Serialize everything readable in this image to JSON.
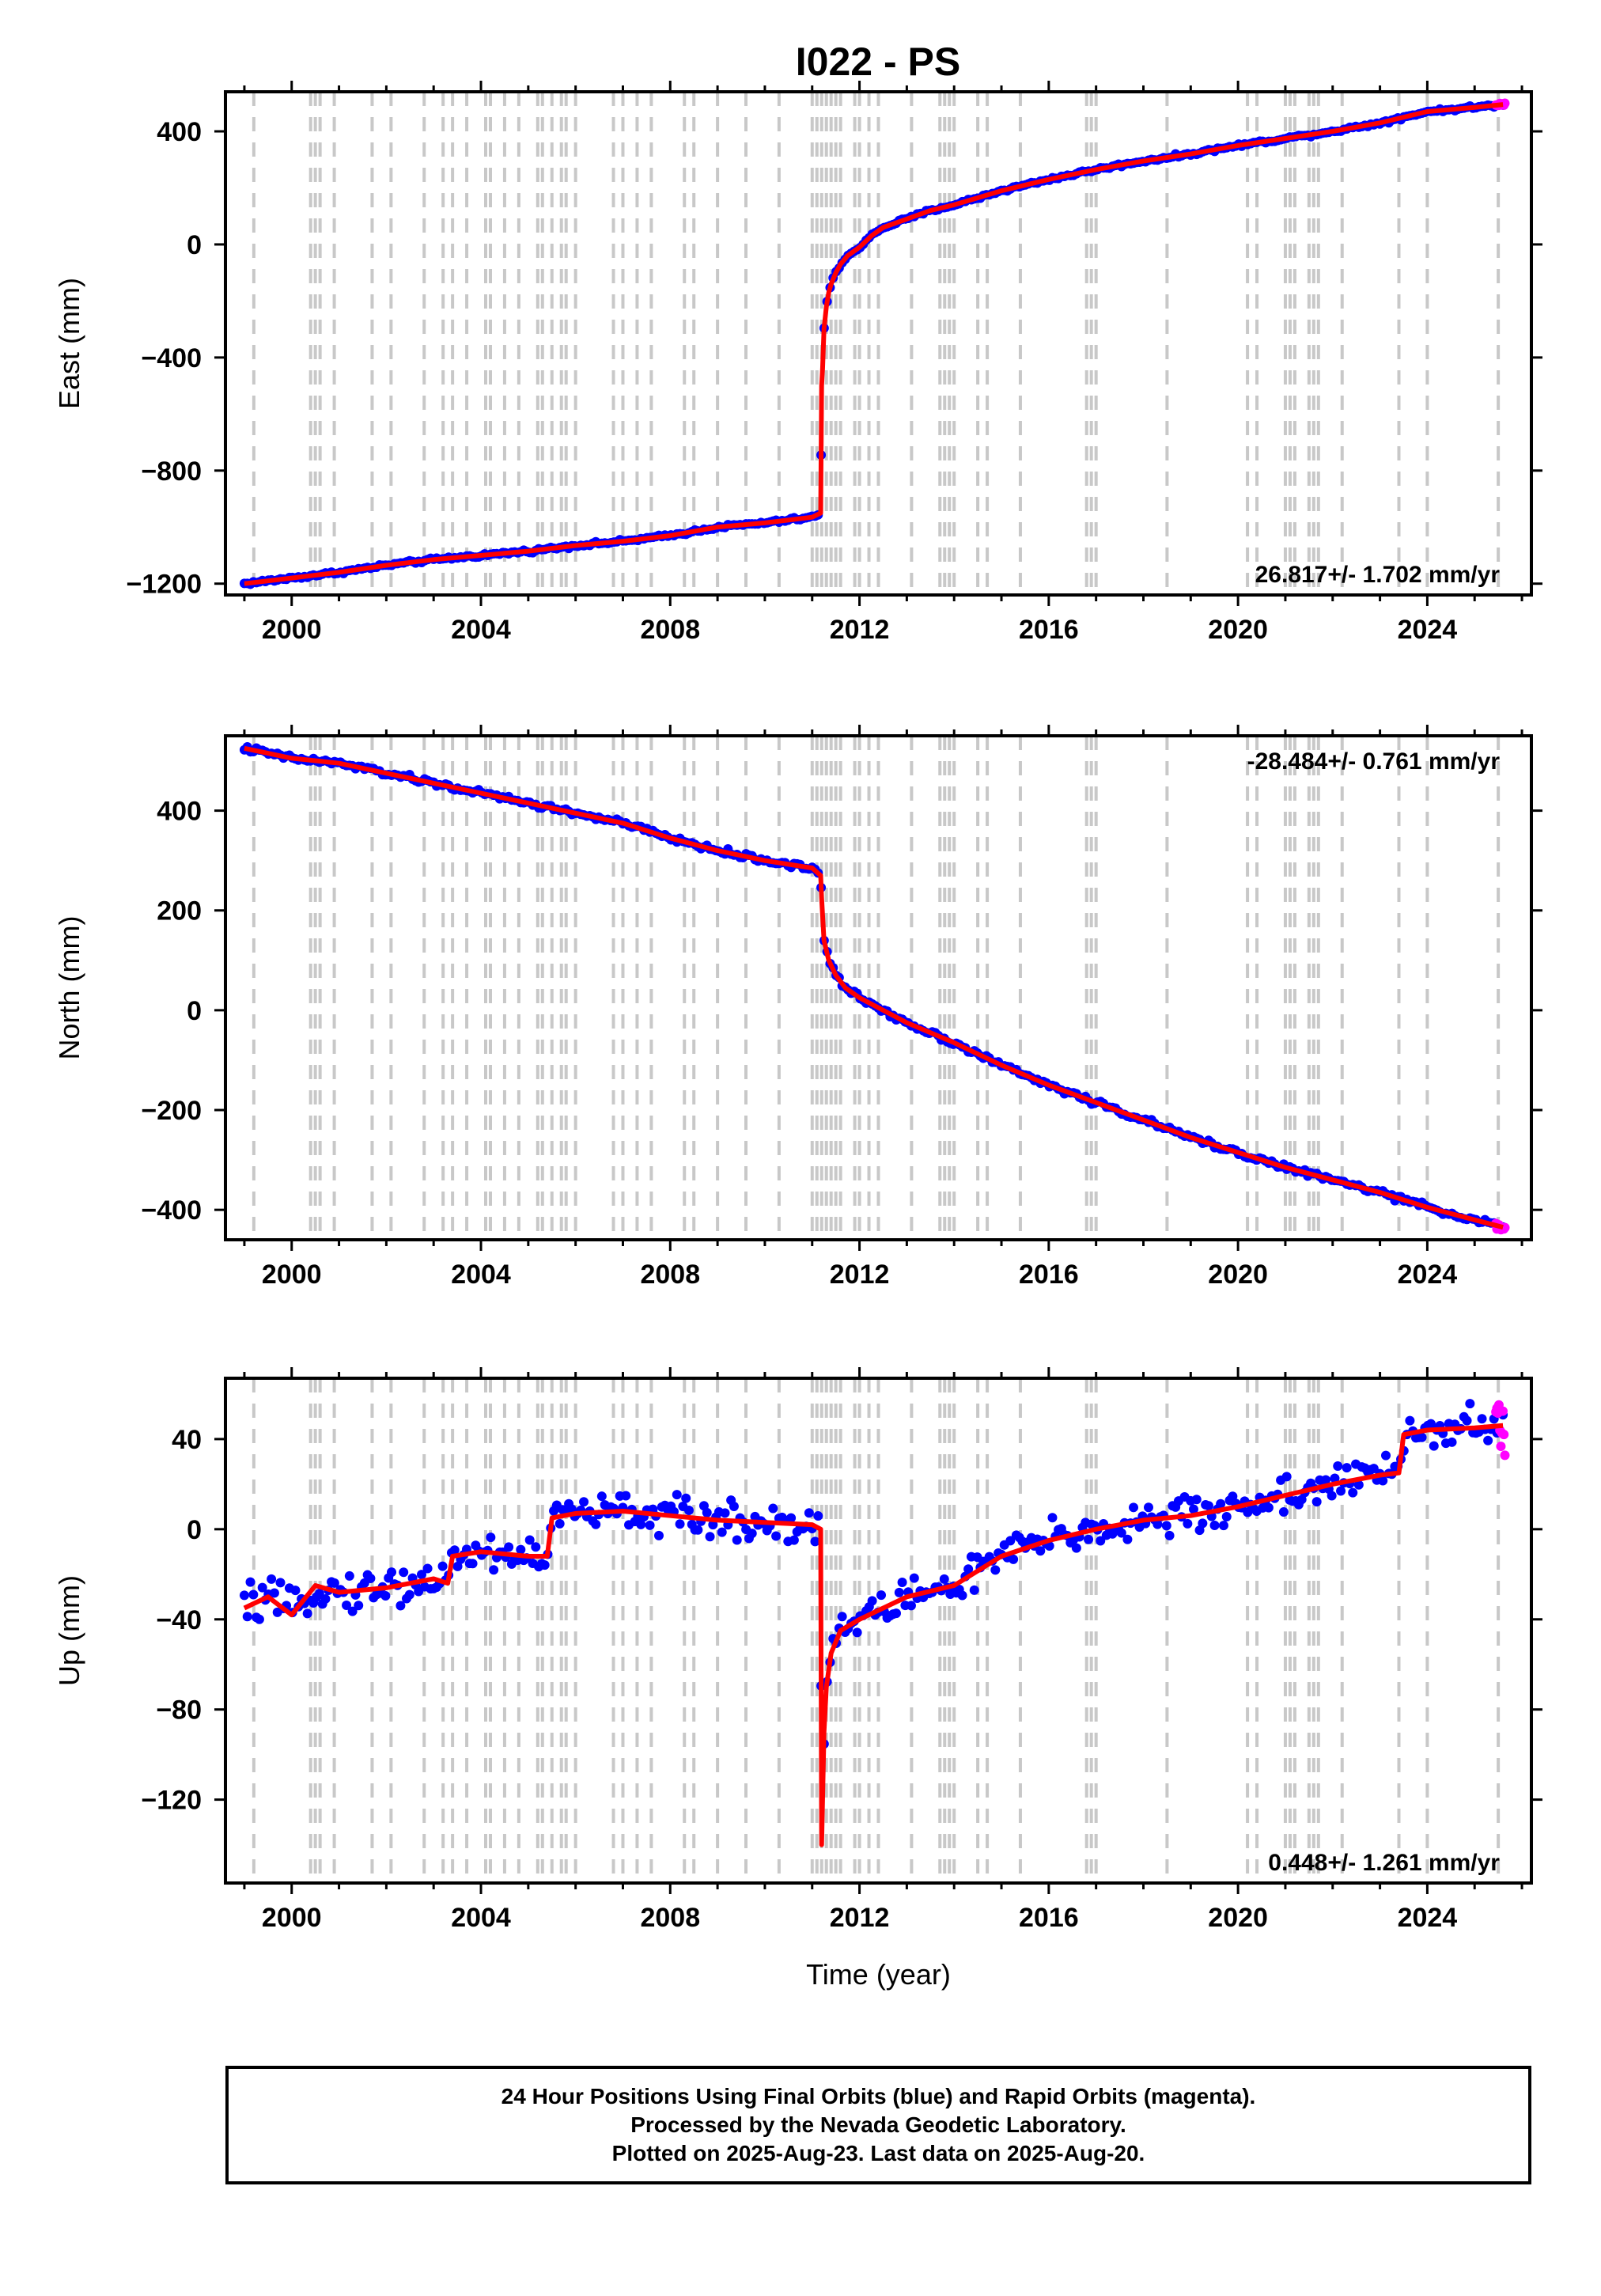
{
  "title": "I022 - PS",
  "colors": {
    "final_orbits": "#0000ff",
    "rapid_orbits": "#ff00ff",
    "model": "#ff0000",
    "event_lines": "#c8c8c8",
    "frame": "#000000"
  },
  "caption": {
    "line1": "24 Hour Positions Using Final Orbits (blue) and Rapid Orbits (magenta).",
    "line2": "Processed by the Nevada Geodetic Laboratory.",
    "line3": "Plotted on 2025-Aug-23. Last data on 2025-Aug-20."
  },
  "chart_data": [
    {
      "type": "scatter",
      "title": "I022 - PS",
      "ylabel": "East (mm)",
      "xlabel": "",
      "xlim": [
        1998.6,
        2026.2
      ],
      "ylim": [
        -1240,
        540
      ],
      "xticks": [
        2000,
        2004,
        2008,
        2012,
        2016,
        2020,
        2024
      ],
      "yticks": [
        -1200,
        -800,
        -400,
        0,
        400
      ],
      "grid": false,
      "rate_label": "26.817+/- 1.702 mm/yr",
      "rate_position": "bottom-right",
      "event_lines": [
        1999.2,
        2000.4,
        2000.5,
        2000.6,
        2000.9,
        2001.7,
        2002.1,
        2002.8,
        2003.2,
        2003.4,
        2003.7,
        2004.1,
        2004.2,
        2004.5,
        2004.8,
        2005.2,
        2005.3,
        2005.5,
        2005.7,
        2005.8,
        2006.0,
        2006.8,
        2007.0,
        2007.3,
        2007.6,
        2008.3,
        2008.5,
        2009.0,
        2009.6,
        2010.3,
        2011.0,
        2011.1,
        2011.2,
        2011.3,
        2011.4,
        2011.5,
        2011.6,
        2011.9,
        2012.0,
        2012.2,
        2012.4,
        2013.1,
        2013.7,
        2013.8,
        2013.9,
        2014.0,
        2014.5,
        2014.7,
        2015.4,
        2016.8,
        2016.9,
        2017.0,
        2018.5,
        2020.2,
        2020.4,
        2021.0,
        2021.1,
        2021.2,
        2021.5,
        2021.6,
        2021.7,
        2022.2,
        2023.4,
        2024.0,
        2025.5
      ],
      "series": [
        {
          "name": "Final Orbits",
          "x": [
            1999.0,
            2000.0,
            2001.0,
            2002.0,
            2003.0,
            2004.0,
            2005.0,
            2006.0,
            2007.0,
            2008.0,
            2009.0,
            2010.0,
            2011.0,
            2011.18,
            2011.2,
            2011.22,
            2011.25,
            2011.3,
            2011.35,
            2011.4,
            2011.5,
            2011.6,
            2011.75,
            2012.0,
            2012.25,
            2012.5,
            2013.0,
            2013.5,
            2014.0,
            2015.0,
            2016.0,
            2017.0,
            2018.0,
            2019.0,
            2020.0,
            2021.0,
            2022.0,
            2023.0,
            2024.0,
            2025.0,
            2025.6
          ],
          "values": [
            -1200,
            -1180,
            -1160,
            -1135,
            -1115,
            -1100,
            -1085,
            -1065,
            -1050,
            -1030,
            -1000,
            -985,
            -965,
            -950,
            -500,
            -440,
            -300,
            -220,
            -170,
            -140,
            -100,
            -70,
            -40,
            -10,
            30,
            60,
            90,
            120,
            140,
            190,
            230,
            265,
            295,
            320,
            350,
            375,
            400,
            430,
            470,
            485,
            495
          ]
        },
        {
          "name": "Rapid Orbits",
          "x": [
            2025.45,
            2025.55,
            2025.64
          ],
          "values": [
            492,
            496,
            497
          ]
        }
      ]
    },
    {
      "type": "scatter",
      "ylabel": "North (mm)",
      "xlabel": "",
      "xlim": [
        1998.6,
        2026.2
      ],
      "ylim": [
        -460,
        550
      ],
      "xticks": [
        2000,
        2004,
        2008,
        2012,
        2016,
        2020,
        2024
      ],
      "yticks": [
        -400,
        -200,
        0,
        200,
        400
      ],
      "grid": false,
      "rate_label": "-28.484+/- 0.761 mm/yr",
      "rate_position": "top-right",
      "event_lines": [
        1999.2,
        2000.4,
        2000.5,
        2000.6,
        2000.9,
        2001.7,
        2002.1,
        2002.8,
        2003.2,
        2003.4,
        2003.7,
        2004.1,
        2004.2,
        2004.5,
        2004.8,
        2005.2,
        2005.3,
        2005.5,
        2005.7,
        2005.8,
        2006.0,
        2006.8,
        2007.0,
        2007.3,
        2007.6,
        2008.3,
        2008.5,
        2009.0,
        2009.6,
        2010.3,
        2011.0,
        2011.1,
        2011.2,
        2011.3,
        2011.4,
        2011.5,
        2011.6,
        2011.9,
        2012.0,
        2012.2,
        2012.4,
        2013.1,
        2013.7,
        2013.8,
        2013.9,
        2014.0,
        2014.5,
        2014.7,
        2015.4,
        2016.8,
        2016.9,
        2017.0,
        2018.5,
        2020.2,
        2020.4,
        2021.0,
        2021.1,
        2021.2,
        2021.5,
        2021.6,
        2021.7,
        2022.2,
        2023.4,
        2024.0,
        2025.5
      ],
      "series": [
        {
          "name": "Final Orbits",
          "x": [
            1999.0,
            1999.5,
            2000.0,
            2000.5,
            2001.0,
            2002.0,
            2003.0,
            2004.0,
            2005.0,
            2006.0,
            2007.0,
            2008.0,
            2009.0,
            2010.0,
            2011.0,
            2011.18,
            2011.2,
            2011.25,
            2011.35,
            2011.5,
            2011.7,
            2012.0,
            2012.5,
            2013.0,
            2014.0,
            2015.0,
            2016.0,
            2017.0,
            2018.0,
            2019.0,
            2020.0,
            2021.0,
            2022.0,
            2023.0,
            2024.0,
            2025.0,
            2025.6
          ],
          "values": [
            525,
            515,
            505,
            500,
            495,
            475,
            455,
            435,
            415,
            395,
            375,
            345,
            320,
            300,
            285,
            270,
            225,
            140,
            100,
            70,
            45,
            25,
            0,
            -25,
            -65,
            -110,
            -150,
            -185,
            -220,
            -255,
            -285,
            -315,
            -340,
            -365,
            -395,
            -420,
            -435
          ]
        },
        {
          "name": "Rapid Orbits",
          "x": [
            2025.45,
            2025.55,
            2025.64
          ],
          "values": [
            -430,
            -435,
            -437
          ]
        }
      ]
    },
    {
      "type": "scatter",
      "ylabel": "Up (mm)",
      "xlabel": "Time (year)",
      "xlim": [
        1998.6,
        2026.2
      ],
      "ylim": [
        -157,
        67
      ],
      "xticks": [
        2000,
        2004,
        2008,
        2012,
        2016,
        2020,
        2024
      ],
      "yticks": [
        -120,
        -80,
        -40,
        0,
        40
      ],
      "grid": false,
      "rate_label": "0.448+/- 1.261 mm/yr",
      "rate_position": "bottom-right",
      "event_lines": [
        1999.2,
        2000.4,
        2000.5,
        2000.6,
        2000.9,
        2001.7,
        2002.1,
        2002.8,
        2003.2,
        2003.4,
        2003.7,
        2004.1,
        2004.2,
        2004.5,
        2004.8,
        2005.2,
        2005.3,
        2005.5,
        2005.7,
        2005.8,
        2006.0,
        2006.8,
        2007.0,
        2007.3,
        2007.6,
        2008.3,
        2008.5,
        2009.0,
        2009.6,
        2010.3,
        2011.0,
        2011.1,
        2011.2,
        2011.3,
        2011.4,
        2011.5,
        2011.6,
        2011.9,
        2012.0,
        2012.2,
        2012.4,
        2013.1,
        2013.7,
        2013.8,
        2013.9,
        2014.0,
        2014.5,
        2014.7,
        2015.4,
        2016.8,
        2016.9,
        2017.0,
        2018.5,
        2020.2,
        2020.4,
        2021.0,
        2021.1,
        2021.2,
        2021.5,
        2021.6,
        2021.7,
        2022.2,
        2023.4,
        2024.0,
        2025.5
      ],
      "series": [
        {
          "name": "Final Orbits",
          "x": [
            1999.0,
            1999.5,
            2000.0,
            2000.5,
            2001.0,
            2002.0,
            2003.0,
            2003.3,
            2003.4,
            2004.0,
            2005.0,
            2005.4,
            2005.5,
            2006.0,
            2007.0,
            2008.0,
            2009.0,
            2010.0,
            2011.0,
            2011.18,
            2011.2,
            2011.25,
            2011.3,
            2011.4,
            2011.6,
            2012.0,
            2013.0,
            2014.0,
            2015.0,
            2016.0,
            2017.0,
            2018.0,
            2019.0,
            2020.0,
            2021.0,
            2022.0,
            2023.0,
            2023.4,
            2023.5,
            2024.0,
            2025.0,
            2025.6
          ],
          "values": [
            -35,
            -30,
            -38,
            -25,
            -28,
            -26,
            -22,
            -24,
            -12,
            -10,
            -12,
            -12,
            5,
            7,
            8,
            6,
            4,
            3,
            2,
            0,
            -140,
            -90,
            -70,
            -55,
            -45,
            -40,
            -30,
            -25,
            -12,
            -5,
            0,
            4,
            6,
            10,
            15,
            20,
            24,
            25,
            42,
            44,
            45,
            46
          ]
        },
        {
          "name": "Rapid Orbits",
          "x": [
            2025.45,
            2025.5,
            2025.55,
            2025.6,
            2025.64
          ],
          "values": [
            46,
            55,
            38,
            50,
            32
          ]
        }
      ]
    }
  ]
}
